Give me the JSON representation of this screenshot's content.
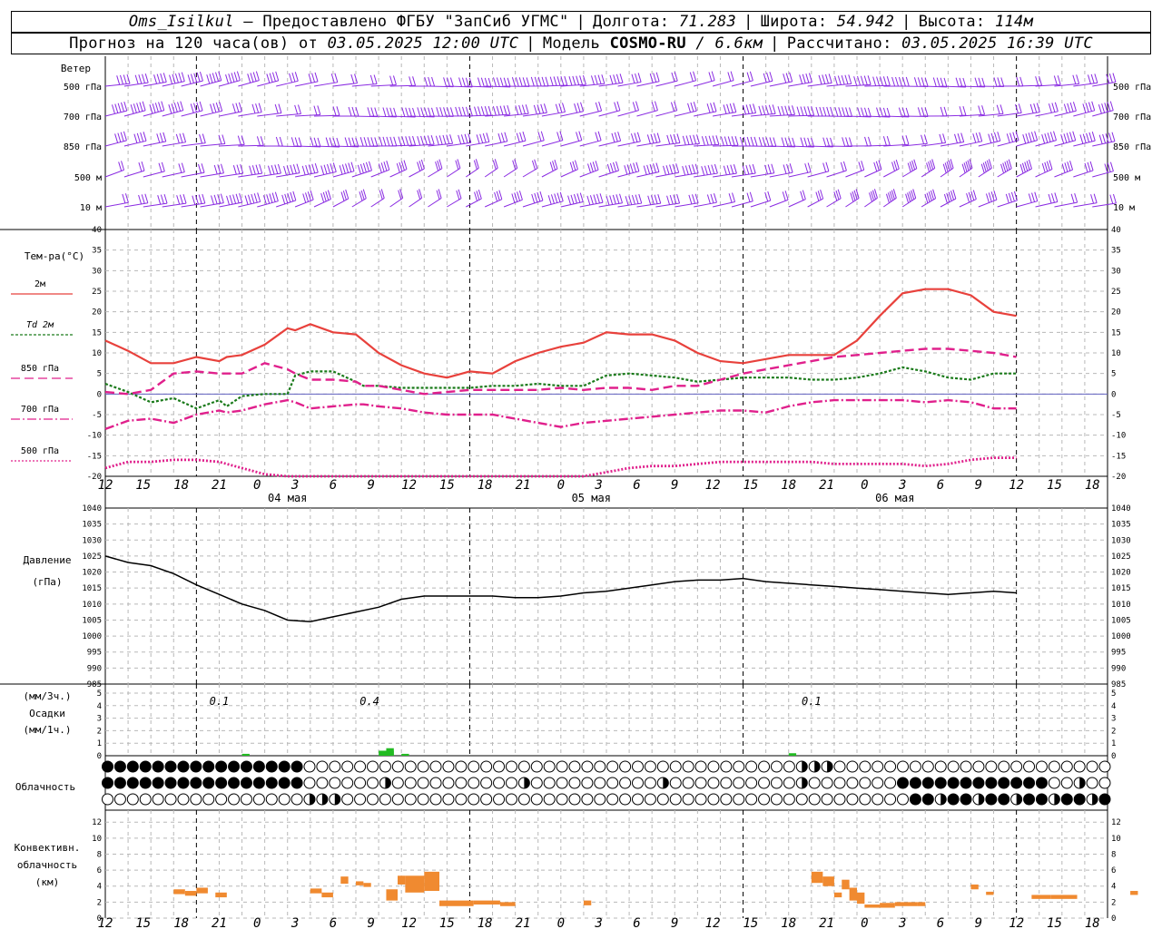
{
  "header": {
    "station": "Oms_Isilkul",
    "provider": "– Предоставлено ФГБУ \"ЗапСиб УГМС\"",
    "lon_label": "Долгота:",
    "lon": "71.283",
    "lat_label": "Широта:",
    "lat": "54.942",
    "alt_label": "Высота:",
    "alt": "114м",
    "forecast_label": "Прогноз на 120 часа(ов) от",
    "forecast_from": "03.05.2025 12:00 UTC",
    "model_label": "Модель",
    "model": "COSMO-RU",
    "model_res": "/ 6.6км",
    "calc_label": "Рассчитано:",
    "calc_time": "03.05.2025 16:39 UTC"
  },
  "axis": {
    "hour_labels": [
      "12",
      "15",
      "18",
      "21",
      "0",
      "3",
      "6",
      "9",
      "12",
      "15",
      "18",
      "21",
      "0",
      "3",
      "6",
      "9",
      "12",
      "15",
      "18",
      "21",
      "0",
      "3",
      "6",
      "9",
      "12",
      "15",
      "18"
    ],
    "date_labels": [
      "04 мая",
      "05 мая",
      "06 мая"
    ]
  },
  "colors": {
    "wind": "#8a2be2",
    "t2m": "#e8413c",
    "td2m": "#1a7a1a",
    "t850": "#e0208c",
    "t700": "#e0208c",
    "t500": "#e0208c",
    "pressure": "#000000",
    "precip": "#22bb22",
    "convective": "#f08a30"
  },
  "wind_panel": {
    "title": "Ветер",
    "levels": [
      "500 гПа",
      "700 гПа",
      "850 гПа",
      "500 м",
      "10 м"
    ]
  },
  "temp_panel": {
    "title": "Тем-ра(°C)",
    "legend": [
      "2м",
      "Td  2м",
      "850 гПа",
      "700 гПа",
      "500 гПа"
    ],
    "yticks": [
      40,
      35,
      30,
      25,
      20,
      15,
      10,
      5,
      0,
      -5,
      -10,
      -15,
      -20
    ]
  },
  "pressure_panel": {
    "title_1": "Давление",
    "title_2": "(гПа)",
    "yticks": [
      1040,
      1035,
      1030,
      1025,
      1020,
      1015,
      1010,
      1005,
      1000,
      995,
      990,
      985
    ]
  },
  "precip_panel": {
    "title_1": "(мм/3ч.)",
    "title_2": "Осадки",
    "title_3": "(мм/1ч.)",
    "yticks": [
      5,
      4,
      3,
      2,
      1,
      0
    ],
    "labels": [
      "0.1",
      "0.4",
      "0.1"
    ]
  },
  "cloud_panel": {
    "title": "Облачность"
  },
  "conv_panel": {
    "title_1": "Конвективн.",
    "title_2": "облачность",
    "title_3": "(км)",
    "yticks": [
      12,
      10,
      8,
      6,
      4,
      2,
      0
    ]
  },
  "chart_data": [
    {
      "type": "line",
      "name": "temperature",
      "x_hours": [
        0,
        3,
        6,
        9,
        12,
        15,
        16,
        18,
        21,
        24,
        25,
        27,
        30,
        33,
        34,
        36,
        39,
        42,
        45,
        48,
        51,
        54,
        57,
        60,
        63,
        66,
        69,
        72,
        75,
        78,
        81,
        84,
        87,
        90,
        93,
        96,
        99,
        102,
        105,
        108,
        111,
        114,
        117,
        120
      ],
      "series": [
        {
          "name": "2м",
          "values": [
            13,
            10.5,
            7.5,
            7.5,
            9,
            8,
            9,
            9.5,
            12,
            16,
            15.5,
            17,
            15,
            14.5,
            13,
            10,
            7,
            5,
            4,
            5.5,
            5,
            8,
            10,
            11.5,
            12.5,
            15,
            14.5,
            14.5,
            13,
            10,
            8,
            7.5,
            8.5,
            9.5,
            9.5,
            9.5,
            13,
            19,
            24.5,
            25.5,
            25.5,
            24,
            20,
            19
          ]
        },
        {
          "name": "Td  2м",
          "values": [
            2.5,
            0.5,
            -2,
            -1,
            -3.5,
            -1.5,
            -3,
            -0.5,
            0,
            0,
            4.5,
            5.5,
            5.5,
            3,
            2,
            2,
            1.5,
            1.5,
            1.5,
            1.5,
            2,
            2,
            2.5,
            2,
            2,
            4.5,
            5,
            4.5,
            4,
            3,
            3.5,
            4,
            4,
            4,
            3.5,
            3.5,
            4,
            5,
            6.5,
            5.5,
            4,
            3.5,
            5,
            5
          ]
        },
        {
          "name": "850 гПа",
          "values": [
            0.5,
            0,
            1,
            5,
            5.5,
            5,
            5,
            5,
            7.5,
            6,
            5,
            3.5,
            3.5,
            3,
            2,
            2,
            1,
            0,
            0.5,
            1,
            1,
            1,
            1,
            1.5,
            1,
            1.5,
            1.5,
            1,
            2,
            2,
            3.5,
            5,
            6,
            7,
            8,
            9,
            9.5,
            10,
            10.5,
            11,
            11,
            10.5,
            10,
            9
          ]
        },
        {
          "name": "700 гПа",
          "values": [
            -8.5,
            -6.5,
            -6,
            -7,
            -5,
            -4,
            -4.5,
            -4,
            -2.5,
            -1.5,
            -2,
            -3.5,
            -3,
            -2.5,
            -2.5,
            -3,
            -3.5,
            -4.5,
            -5,
            -5,
            -5,
            -6,
            -7,
            -8,
            -7,
            -6.5,
            -6,
            -5.5,
            -5,
            -4.5,
            -4,
            -4,
            -4.5,
            -3,
            -2,
            -1.5,
            -1.5,
            -1.5,
            -1.5,
            -2,
            -1.5,
            -2,
            -3.5,
            -3.5
          ]
        },
        {
          "name": "500 гПа",
          "values": [
            -18,
            -16.5,
            -16.5,
            -16,
            -16,
            -16.5,
            -17,
            -18,
            -19.5,
            -20,
            -20,
            -20,
            -21,
            -21,
            -21,
            -21,
            -21,
            -21,
            -21,
            -21,
            -21,
            -21,
            -21,
            -20.5,
            -20,
            -19,
            -18,
            -17.5,
            -17.5,
            -17,
            -16.5,
            -16.5,
            -16.5,
            -16.5,
            -16.5,
            -17,
            -17,
            -17,
            -17,
            -17.5,
            -17,
            -16,
            -15.5,
            -15.5
          ]
        }
      ]
    },
    {
      "type": "line",
      "name": "pressure",
      "x_hours": [
        0,
        3,
        6,
        9,
        12,
        15,
        18,
        21,
        24,
        27,
        30,
        33,
        36,
        39,
        42,
        45,
        48,
        51,
        54,
        57,
        60,
        63,
        66,
        69,
        72,
        75,
        78,
        81,
        84,
        87,
        90,
        93,
        96,
        99,
        102,
        105,
        108,
        111,
        114,
        117,
        120
      ],
      "values": [
        1025,
        1023,
        1022,
        1019.5,
        1016,
        1013,
        1010,
        1008,
        1005,
        1004.5,
        1006,
        1007.5,
        1009,
        1011.5,
        1012.5,
        1012.5,
        1012.5,
        1012.5,
        1012,
        1012,
        1012.5,
        1013.5,
        1014,
        1015,
        1016,
        1017,
        1017.5,
        1017.5,
        1018,
        1017,
        1016.5,
        1016,
        1015.5,
        1015,
        1014.5,
        1014,
        1013.5,
        1013,
        1013.5,
        1014,
        1013.5
      ]
    },
    {
      "type": "bar",
      "name": "precipitation",
      "bars": [
        [
          18,
          19,
          0.15
        ],
        [
          36,
          38,
          0.4
        ],
        [
          37,
          38,
          0.6
        ],
        [
          39,
          40,
          0.15
        ],
        [
          90,
          91,
          0.2
        ]
      ]
    },
    {
      "type": "bar",
      "name": "convective_cloud",
      "boxes": [
        [
          9,
          10.5,
          3.0,
          3.6
        ],
        [
          10.5,
          12,
          2.8,
          3.4
        ],
        [
          12,
          13.5,
          3.1,
          3.8
        ],
        [
          14.5,
          16,
          2.6,
          3.2
        ],
        [
          27,
          28.5,
          3.1,
          3.7
        ],
        [
          28.5,
          30,
          2.6,
          3.2
        ],
        [
          31,
          32,
          4.3,
          5.2
        ],
        [
          33,
          34,
          4.1,
          4.6
        ],
        [
          34,
          35,
          3.9,
          4.4
        ],
        [
          37,
          38.5,
          2.2,
          3.6
        ],
        [
          38.5,
          39.5,
          4.2,
          5.3
        ],
        [
          39.5,
          42,
          3.2,
          5.3
        ],
        [
          42,
          44,
          3.4,
          5.8
        ],
        [
          44,
          48.5,
          1.5,
          2.2
        ],
        [
          48.5,
          52,
          1.7,
          2.2
        ],
        [
          52,
          54,
          1.5,
          2.0
        ],
        [
          63,
          64,
          1.6,
          2.2
        ],
        [
          93,
          94.5,
          4.4,
          5.8
        ],
        [
          94.5,
          96,
          4.0,
          5.2
        ],
        [
          96,
          97,
          2.6,
          3.2
        ],
        [
          97,
          98,
          3.6,
          4.8
        ],
        [
          98,
          99,
          2.2,
          3.8
        ],
        [
          99,
          100,
          1.8,
          3.2
        ],
        [
          100,
          102,
          1.3,
          1.7
        ],
        [
          102,
          104,
          1.3,
          1.9
        ],
        [
          104,
          107,
          1.5,
          2.0
        ],
        [
          107,
          108,
          1.5,
          2.0
        ],
        [
          114,
          115,
          3.6,
          4.2
        ],
        [
          116,
          117,
          2.9,
          3.3
        ],
        [
          122,
          124.5,
          2.4,
          2.9
        ],
        [
          124.5,
          128,
          2.4,
          2.9
        ],
        [
          135,
          136,
          2.9,
          3.4
        ],
        [
          145,
          147,
          3.2,
          3.8
        ],
        [
          147,
          148,
          3.5,
          4.2
        ],
        [
          148,
          149,
          4.4,
          5.2
        ],
        [
          149,
          150,
          3.2,
          3.8
        ],
        [
          150,
          151,
          3.5,
          4.5
        ],
        [
          151,
          152,
          3.2,
          3.8
        ]
      ]
    }
  ]
}
